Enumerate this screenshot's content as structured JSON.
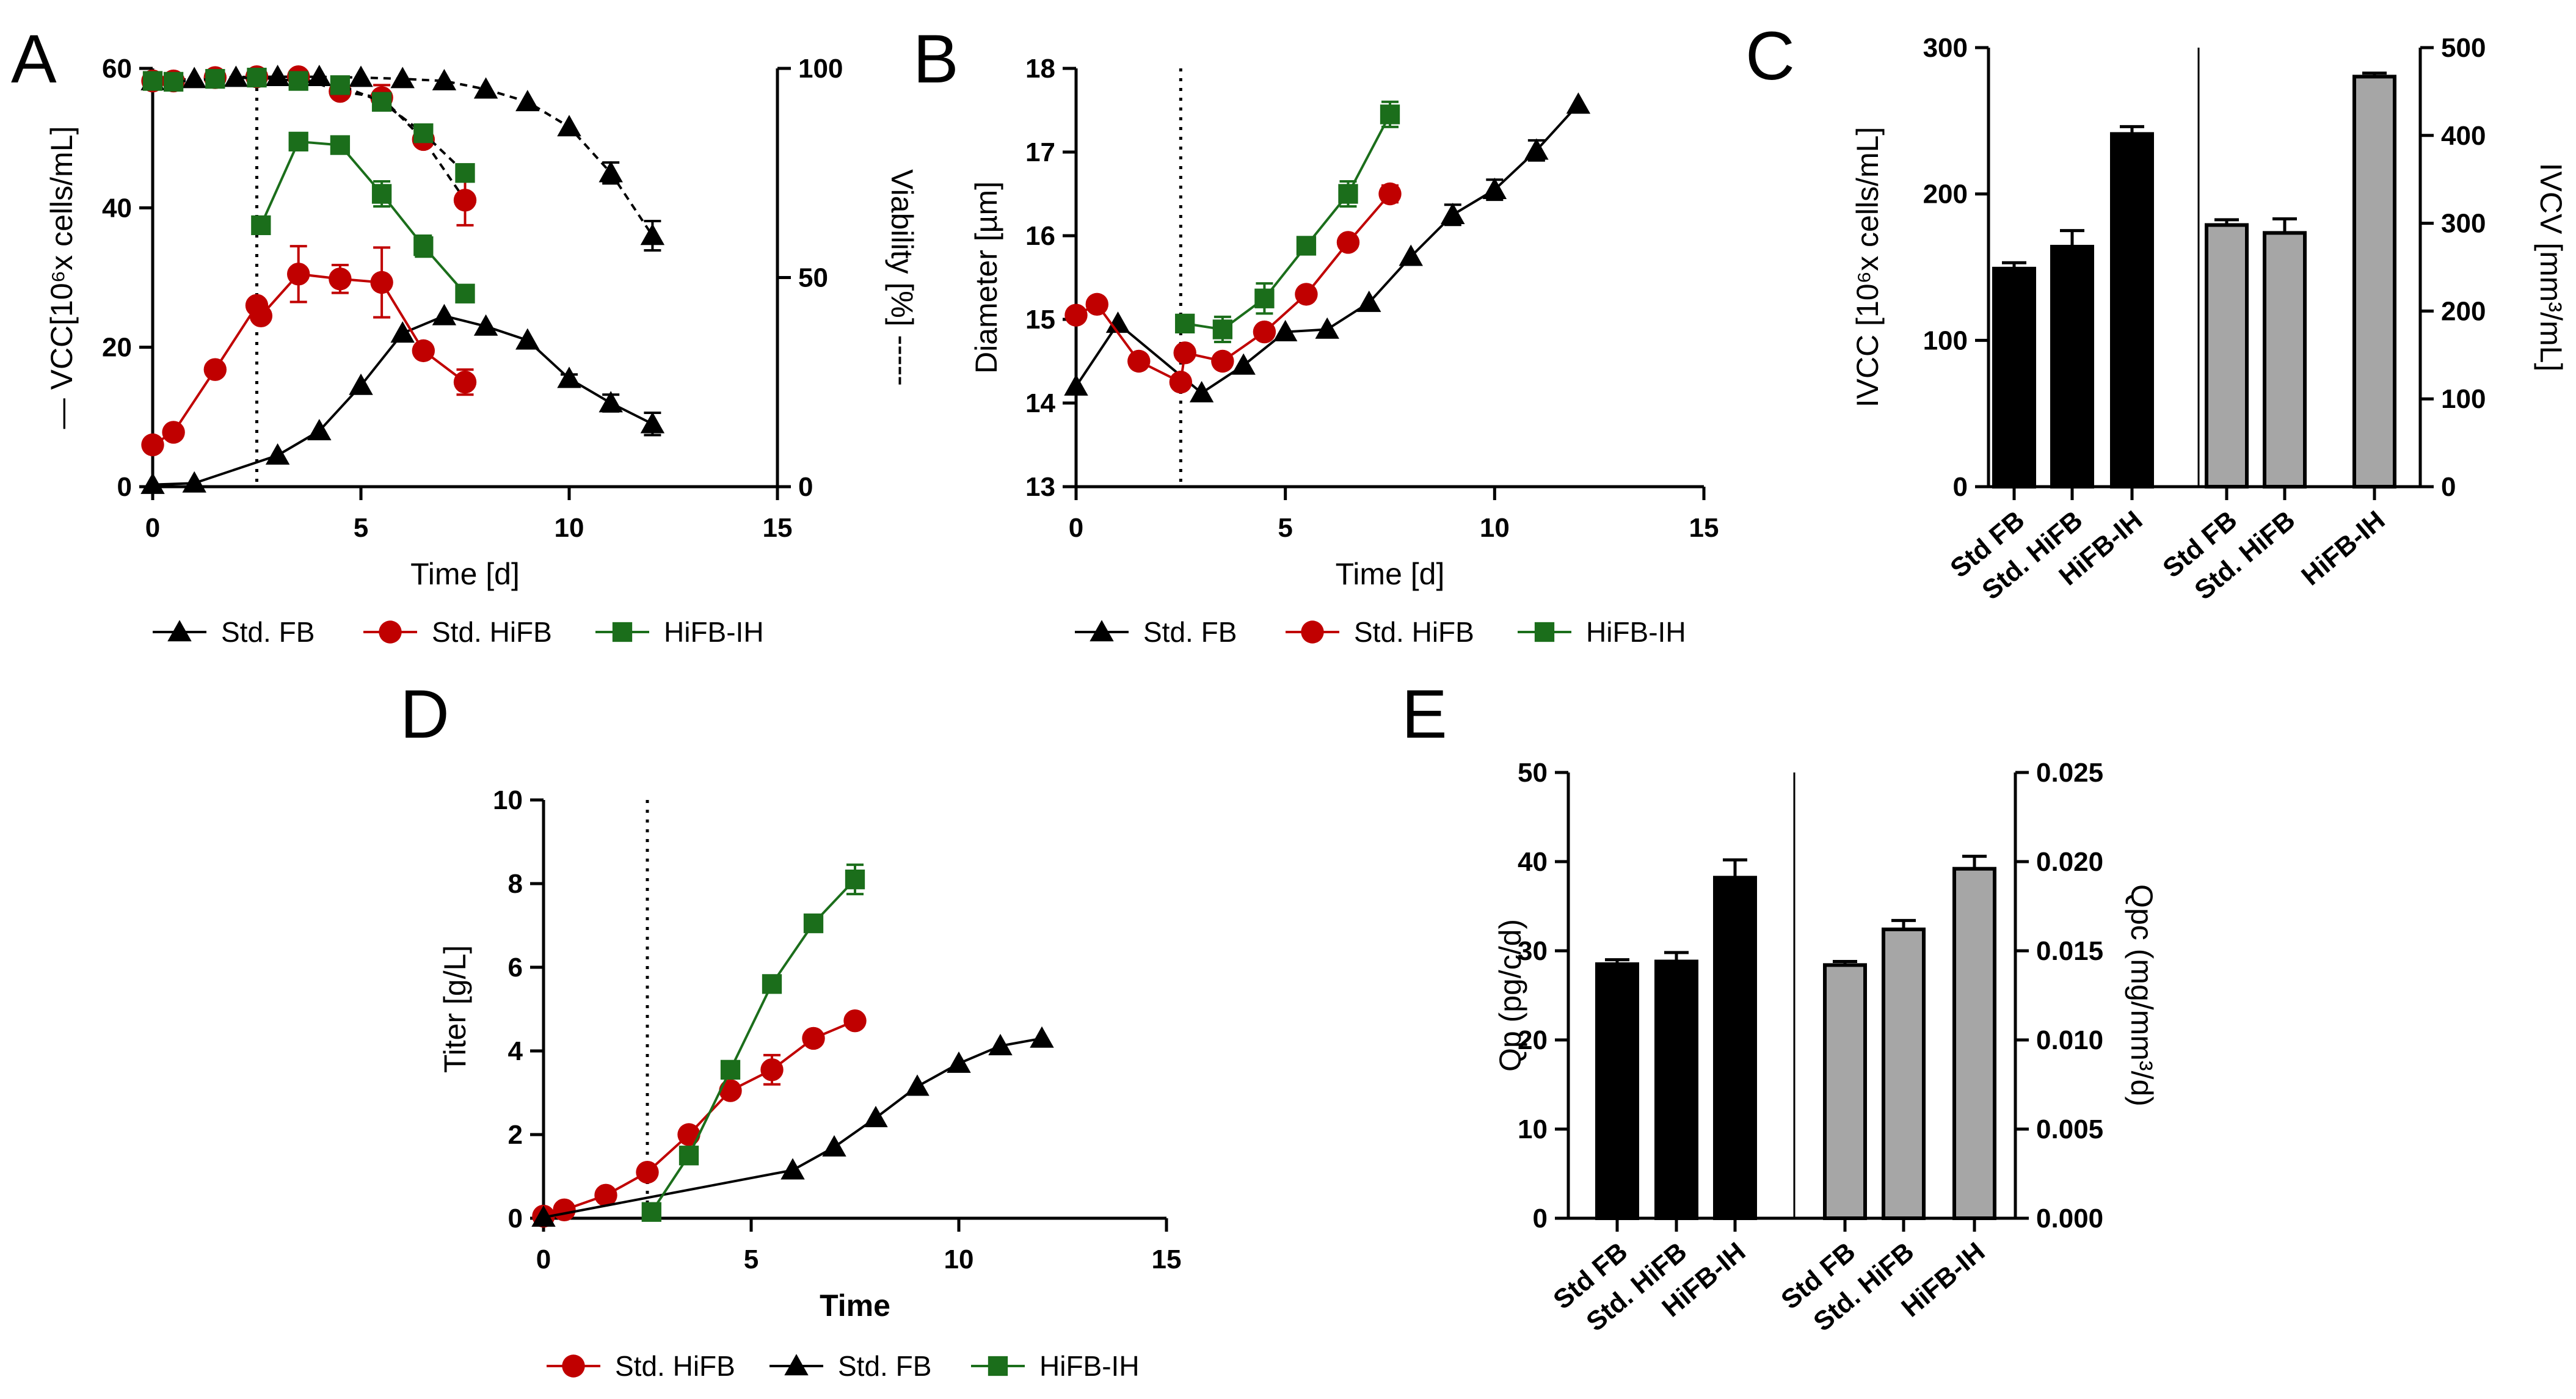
{
  "colors": {
    "fb": "#000000",
    "hifb": "#c00000",
    "ih": "#1b6e1b",
    "bar_black": "#000000",
    "bar_gray": "#a6a6a6",
    "axis": "#000000"
  },
  "chart_data": [
    {
      "panel": "A",
      "type": "line",
      "xlabel": "Time [d]",
      "ylabel": "VCC[10⁶x cells/mL]",
      "ylabel_prefix": "—",
      "y2label": "Viability [%]",
      "y2label_prefix": "-----",
      "xlim": [
        0,
        15
      ],
      "ylim": [
        0,
        60
      ],
      "y2lim": [
        0,
        100
      ],
      "xticks": [
        "0",
        "5",
        "10",
        "15"
      ],
      "yticks": [
        "0",
        "20",
        "40",
        "60"
      ],
      "y2ticks": [
        "0",
        "50",
        "100"
      ],
      "vline_x": 2.5,
      "series": [
        {
          "name": "Std. FB",
          "marker": "triangle",
          "color": "fb",
          "axis": "left",
          "dashed": false,
          "x": [
            0,
            1,
            3,
            4,
            5,
            6,
            7,
            8,
            9,
            10,
            11,
            12
          ],
          "y": [
            0.3,
            0.5,
            4.5,
            8,
            14.5,
            22,
            24.5,
            23,
            21,
            15.5,
            12,
            9
          ],
          "err": [
            0,
            0,
            0,
            0,
            0,
            0,
            0,
            0,
            0,
            0.6,
            1.2,
            1.6
          ]
        },
        {
          "name": "Std. HiFB",
          "marker": "circle",
          "color": "hifb",
          "axis": "left",
          "dashed": false,
          "x": [
            0,
            0.5,
            1.5,
            2.5,
            2.6,
            3.5,
            4.5,
            5.5,
            6.5,
            7.5
          ],
          "y": [
            6,
            7.8,
            16.8,
            26,
            24.5,
            30.5,
            29.8,
            29.3,
            19.5,
            15
          ],
          "err": [
            0,
            0,
            0,
            0,
            0,
            4,
            2,
            5,
            0,
            1.8
          ]
        },
        {
          "name": "HiFB-IH",
          "marker": "square",
          "color": "ih",
          "axis": "left",
          "dashed": false,
          "x": [
            2.6,
            3.5,
            4.5,
            5.5,
            6.5,
            7.5
          ],
          "y": [
            37.5,
            49.5,
            49,
            42,
            34.5,
            27.7
          ],
          "err": [
            0,
            0,
            0,
            1.8,
            1.5,
            0
          ]
        },
        {
          "name": "Std. FB",
          "marker": "triangle",
          "color": "fb",
          "axis": "right",
          "dashed": true,
          "x": [
            0,
            1,
            2,
            3,
            4,
            5,
            6,
            7,
            8,
            9,
            10,
            11,
            12
          ],
          "y": [
            97,
            97.5,
            97.8,
            98,
            98,
            97.8,
            97.5,
            97,
            95,
            92,
            86,
            75,
            60
          ],
          "err": [
            0,
            0,
            0,
            0,
            0,
            0,
            0,
            0,
            0,
            0,
            0,
            2.5,
            3.5
          ]
        },
        {
          "name": "Std. HiFB",
          "marker": "circle",
          "color": "hifb",
          "axis": "right",
          "dashed": true,
          "x": [
            0,
            0.5,
            1.5,
            2.5,
            3.5,
            4.5,
            5.5,
            6.5,
            7.5
          ],
          "y": [
            97,
            97,
            97.8,
            98,
            98,
            94.5,
            93,
            83,
            68.5
          ],
          "err": [
            0,
            0,
            0,
            0,
            0,
            0,
            3,
            0,
            6
          ]
        },
        {
          "name": "HiFB-IH",
          "marker": "square",
          "color": "ih",
          "axis": "right",
          "dashed": true,
          "x": [
            0,
            0.5,
            1.5,
            2.5,
            3.5,
            4.5,
            5.5,
            6.5,
            7.5
          ],
          "y": [
            97,
            96.8,
            97.5,
            97.8,
            97,
            96,
            92,
            84.5,
            75
          ],
          "err": [
            0,
            0,
            0,
            0,
            0,
            0,
            0,
            0,
            0
          ]
        }
      ],
      "legend": [
        "Std. FB",
        "Std. HiFB",
        "HiFB-IH"
      ]
    },
    {
      "panel": "B",
      "type": "line",
      "xlabel": "Time [d]",
      "ylabel": "Diameter [µm]",
      "xlim": [
        0,
        15
      ],
      "ylim": [
        13,
        18
      ],
      "xticks": [
        "0",
        "5",
        "10",
        "15"
      ],
      "yticks": [
        "13",
        "14",
        "15",
        "16",
        "17",
        "18"
      ],
      "vline_x": 2.5,
      "series": [
        {
          "name": "Std. FB",
          "marker": "triangle",
          "color": "fb",
          "x": [
            0,
            1,
            3,
            4,
            5,
            6,
            7,
            8,
            9,
            10,
            11,
            12
          ],
          "y": [
            14.2,
            14.95,
            14.12,
            14.45,
            14.85,
            14.88,
            15.2,
            15.75,
            16.25,
            16.55,
            17.02,
            17.57
          ],
          "err": [
            0,
            0,
            0,
            0,
            0,
            0,
            0,
            0,
            0.12,
            0.12,
            0.12,
            0
          ]
        },
        {
          "name": "Std. HiFB",
          "marker": "circle",
          "color": "hifb",
          "x": [
            0,
            0.5,
            1.5,
            2.5,
            2.6,
            3.5,
            4.5,
            5.5,
            6.5,
            7.5
          ],
          "y": [
            15.05,
            15.18,
            14.5,
            14.25,
            14.6,
            14.5,
            14.85,
            15.3,
            15.92,
            16.5
          ],
          "err": [
            0,
            0,
            0,
            0,
            0,
            0,
            0,
            0,
            0,
            0.1
          ]
        },
        {
          "name": "HiFB-IH",
          "marker": "square",
          "color": "ih",
          "x": [
            2.6,
            3.5,
            4.5,
            5.5,
            6.5,
            7.5
          ],
          "y": [
            14.95,
            14.88,
            15.25,
            15.88,
            16.5,
            17.45
          ],
          "err": [
            0,
            0.15,
            0.18,
            0,
            0.15,
            0.15
          ]
        }
      ],
      "legend": [
        "Std. FB",
        "Std. HiFB",
        "HiFB-IH"
      ]
    },
    {
      "panel": "C",
      "type": "bar",
      "ylabel": "IVCC [10⁶x cells/mL]",
      "y2label": "IVCV [mm³/mL]",
      "ylim": [
        0,
        300
      ],
      "y2lim": [
        0,
        500
      ],
      "yticks": [
        "0",
        "100",
        "200",
        "300"
      ],
      "y2ticks": [
        "0",
        "100",
        "200",
        "300",
        "400",
        "500"
      ],
      "categories": [
        "Std FB",
        "Std. HiFB",
        "HiFB-IH",
        "Std FB",
        "Std. HiFB",
        "HiFB-IH"
      ],
      "values": [
        149,
        164,
        241,
        298,
        289,
        467
      ],
      "errors": [
        4,
        11,
        5,
        6,
        16,
        4
      ],
      "axis": [
        "left",
        "left",
        "left",
        "right",
        "right",
        "right"
      ],
      "fill": [
        "bar_black",
        "bar_black",
        "bar_black",
        "bar_gray",
        "bar_gray",
        "bar_gray"
      ]
    },
    {
      "panel": "D",
      "type": "line",
      "xlabel": "Time",
      "ylabel": "Titer [g/L]",
      "xlim": [
        0,
        15
      ],
      "ylim": [
        0,
        10
      ],
      "xticks": [
        "0",
        "5",
        "10",
        "15"
      ],
      "yticks": [
        "0",
        "2",
        "4",
        "6",
        "8",
        "10"
      ],
      "vline_x": 2.5,
      "series": [
        {
          "name": "Std. HiFB",
          "marker": "circle",
          "color": "hifb",
          "x": [
            0,
            0.5,
            1.5,
            2.5,
            3.5,
            4.5,
            5.5,
            6.5,
            7.5
          ],
          "y": [
            0.05,
            0.2,
            0.55,
            1.1,
            2,
            3.05,
            3.55,
            4.3,
            4.72
          ],
          "err": [
            0,
            0,
            0,
            0,
            0,
            0,
            0.35,
            0,
            0
          ]
        },
        {
          "name": "Std. FB",
          "marker": "triangle",
          "color": "fb",
          "x": [
            0,
            6,
            7,
            8,
            9,
            10,
            11,
            12
          ],
          "y": [
            0.02,
            1.15,
            1.7,
            2.4,
            3.15,
            3.7,
            4.12,
            4.3
          ],
          "err": [
            0,
            0,
            0,
            0,
            0,
            0,
            0,
            0
          ]
        },
        {
          "name": "HiFB-IH",
          "marker": "square",
          "color": "ih",
          "x": [
            2.6,
            3.5,
            4.5,
            5.5,
            6.5,
            7.5
          ],
          "y": [
            0.15,
            1.5,
            3.55,
            5.6,
            7.05,
            8.1
          ],
          "err": [
            0,
            0,
            0,
            0,
            0,
            0.35
          ]
        }
      ],
      "legend": [
        "Std. HiFB",
        "Std. FB",
        "HiFB-IH"
      ]
    },
    {
      "panel": "E",
      "type": "bar",
      "ylabel": "Qp (pg/c/d)",
      "y2label": "Qpᴄ (mg/mm³/d)",
      "ylim": [
        0,
        50
      ],
      "y2lim": [
        0,
        0.025
      ],
      "yticks": [
        "0",
        "10",
        "20",
        "30",
        "40",
        "50"
      ],
      "y2ticks": [
        "0.000",
        "0.005",
        "0.010",
        "0.015",
        "0.020",
        "0.025"
      ],
      "categories": [
        "Std FB",
        "Std. HiFB",
        "HiFB-IH",
        "Std FB",
        "Std. HiFB",
        "HiFB-IH"
      ],
      "values": [
        28.5,
        28.8,
        38.2,
        0.0142,
        0.0162,
        0.0196
      ],
      "errors": [
        0.5,
        1.0,
        2.0,
        0.0002,
        0.0005,
        0.0007
      ],
      "axis": [
        "left",
        "left",
        "left",
        "right",
        "right",
        "right"
      ],
      "fill": [
        "bar_black",
        "bar_black",
        "bar_black",
        "bar_gray",
        "bar_gray",
        "bar_gray"
      ]
    }
  ]
}
